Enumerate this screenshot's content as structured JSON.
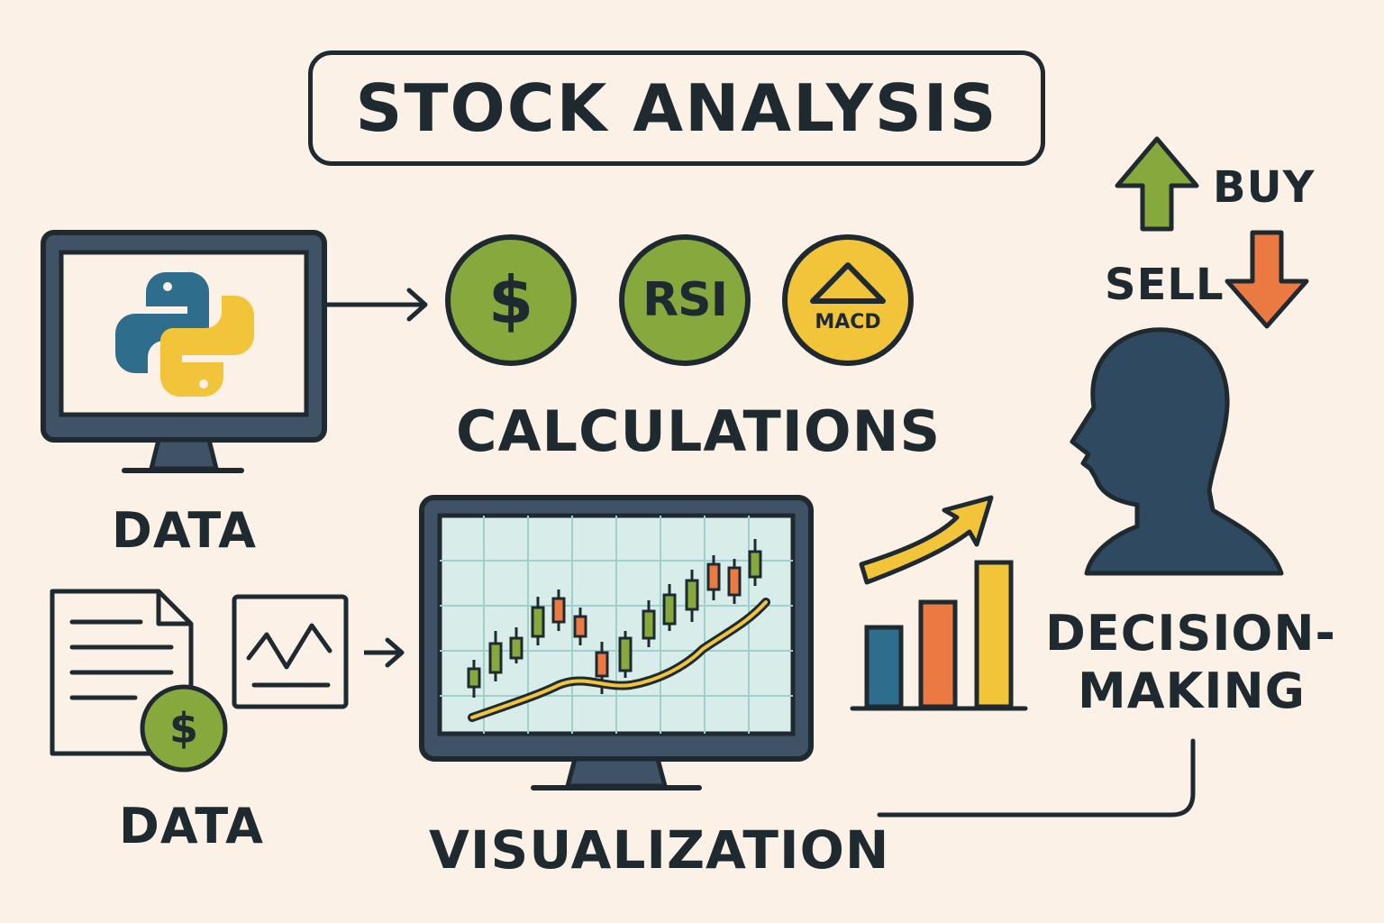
{
  "title": "STOCK ANALYSIS",
  "labels": {
    "data_top": "DATA",
    "data_bottom": "DATA",
    "calculations": "CALCULATIONS",
    "visualization": "VISUALIZATION",
    "decision_line1": "DECISION-",
    "decision_line2": "MAKING",
    "buy": "BUY",
    "sell": "SELL"
  },
  "indicators": {
    "dollar": "$",
    "rsi": "RSI",
    "macd": "MACD"
  },
  "document_badge": "$",
  "icons": [
    "python-logo-icon",
    "monitor-icon",
    "document-icon",
    "dollar-coin-icon",
    "line-chart-icon",
    "candlestick-chart-icon",
    "bar-chart-icon",
    "trend-arrow-icon",
    "person-head-icon",
    "buy-arrow-icon",
    "sell-arrow-icon"
  ],
  "colors": {
    "background": "#fbf1e6",
    "outline": "#1f2a30",
    "green": "#86a83c",
    "yellow": "#f1c43a",
    "orange": "#ea7a42",
    "blue": "#2f6d8c",
    "screen": "#d8ede9",
    "monitor": "#3f5266"
  }
}
